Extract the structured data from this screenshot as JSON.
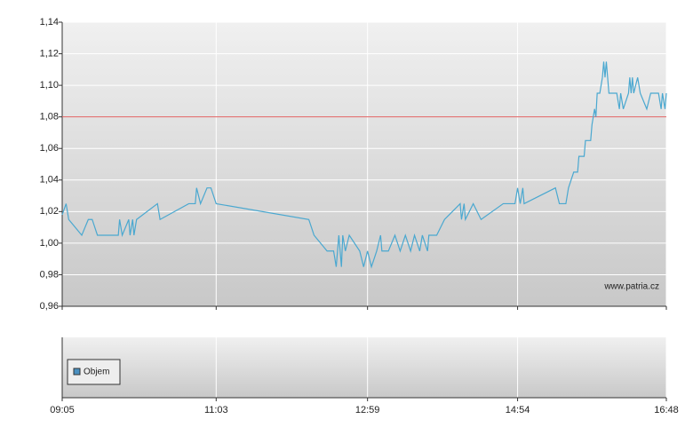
{
  "chart_data": {
    "type": "line",
    "x": [
      "09:05",
      "09:08",
      "09:10",
      "09:20",
      "09:25",
      "09:28",
      "09:32",
      "09:48",
      "09:49",
      "09:51",
      "09:56",
      "09:57",
      "09:59",
      "10:00",
      "10:02",
      "10:18",
      "10:20",
      "10:42",
      "10:47",
      "10:48",
      "10:51",
      "10:56",
      "10:59",
      "11:03",
      "12:14",
      "12:18",
      "12:28",
      "12:33",
      "12:35",
      "12:37",
      "12:39",
      "12:40",
      "12:42",
      "12:45",
      "12:53",
      "12:56",
      "12:59",
      "13:02",
      "13:06",
      "13:09",
      "13:10",
      "13:15",
      "13:20",
      "13:24",
      "13:28",
      "13:32",
      "13:35",
      "13:39",
      "13:41",
      "13:45",
      "13:46",
      "13:52",
      "13:58",
      "14:10",
      "14:11",
      "14:13",
      "14:14",
      "14:20",
      "14:26",
      "14:43",
      "14:52",
      "14:54",
      "14:56",
      "14:58",
      "14:59",
      "15:23",
      "15:26",
      "15:31",
      "15:33",
      "15:37",
      "15:40",
      "15:41",
      "15:45",
      "15:46",
      "15:50",
      "15:51",
      "15:53",
      "15:54",
      "15:55",
      "15:57",
      "15:59",
      "16:00",
      "16:01",
      "16:02",
      "16:03",
      "16:04",
      "16:10",
      "16:12",
      "16:13",
      "16:15",
      "16:19",
      "16:20",
      "16:21",
      "16:22",
      "16:23",
      "16:26",
      "16:28",
      "16:33",
      "16:36",
      "16:42",
      "16:44",
      "16:45",
      "16:47",
      "16:48"
    ],
    "series": [
      {
        "color": "#4aa8d0",
        "values": [
          1.018,
          1.025,
          1.015,
          1.005,
          1.015,
          1.015,
          1.005,
          1.005,
          1.015,
          1.005,
          1.015,
          1.005,
          1.015,
          1.005,
          1.015,
          1.025,
          1.015,
          1.025,
          1.025,
          1.035,
          1.025,
          1.035,
          1.035,
          1.025,
          1.015,
          1.005,
          0.995,
          0.995,
          0.985,
          1.005,
          0.985,
          1.005,
          0.995,
          1.005,
          0.995,
          0.985,
          0.995,
          0.985,
          0.995,
          1.005,
          0.995,
          0.995,
          1.005,
          0.995,
          1.005,
          0.995,
          1.005,
          0.995,
          1.005,
          0.995,
          1.005,
          1.005,
          1.015,
          1.025,
          1.015,
          1.025,
          1.015,
          1.025,
          1.015,
          1.025,
          1.025,
          1.035,
          1.025,
          1.035,
          1.025,
          1.035,
          1.025,
          1.025,
          1.035,
          1.045,
          1.045,
          1.055,
          1.055,
          1.065,
          1.065,
          1.075,
          1.085,
          1.08,
          1.095,
          1.095,
          1.105,
          1.115,
          1.105,
          1.115,
          1.105,
          1.095,
          1.095,
          1.085,
          1.095,
          1.085,
          1.095,
          1.105,
          1.095,
          1.105,
          1.095,
          1.105,
          1.095,
          1.085,
          1.095,
          1.095,
          1.085,
          1.095,
          1.085,
          1.095
        ]
      }
    ],
    "xlim": [
      "09:05",
      "16:48"
    ],
    "xticks": [
      "09:05",
      "11:03",
      "12:59",
      "14:54",
      "16:48"
    ],
    "ylim": [
      0.96,
      1.14
    ],
    "yticks": [
      {
        "value": 0.96,
        "label": "0,96"
      },
      {
        "value": 0.98,
        "label": "0,98"
      },
      {
        "value": 1.0,
        "label": "1,00"
      },
      {
        "value": 1.02,
        "label": "1,02"
      },
      {
        "value": 1.04,
        "label": "1,04"
      },
      {
        "value": 1.06,
        "label": "1,06"
      },
      {
        "value": 1.08,
        "label": "1,08"
      },
      {
        "value": 1.1,
        "label": "1,10"
      },
      {
        "value": 1.12,
        "label": "1,12"
      },
      {
        "value": 1.14,
        "label": "1,14"
      }
    ],
    "reference_line": {
      "value": 1.08,
      "color": "#e06060"
    },
    "grid": true,
    "watermark": "www.patria.cz",
    "volume_legend": {
      "name": "Objem",
      "color": "#4a90c0"
    }
  }
}
